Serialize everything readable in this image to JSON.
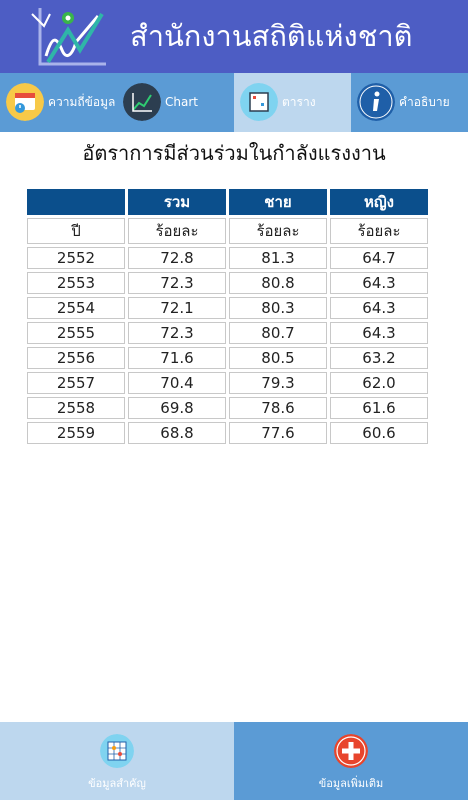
{
  "header": {
    "title": "สำนักงานสถิติแห่งชาติ",
    "brand_color": "#4d5dc4",
    "logo_icon": "nso-logo-icon"
  },
  "tabs": [
    {
      "label": "ความถี่ข้อมูล",
      "icon": "calendar-clock-icon",
      "active": false
    },
    {
      "label": "Chart",
      "icon": "line-chart-icon",
      "active": false
    },
    {
      "label": "ตาราง",
      "icon": "table-icon",
      "active": true
    },
    {
      "label": "คำอธิบาย",
      "icon": "info-icon",
      "active": false
    }
  ],
  "table": {
    "title": "อัตราการมีส่วนร่วมในกำลังแรงงาน",
    "headers": [
      "",
      "รวม",
      "ชาย",
      "หญิง"
    ],
    "units": [
      "ปี",
      "ร้อยละ",
      "ร้อยละ",
      "ร้อยละ"
    ],
    "rows": [
      [
        "2552",
        "72.8",
        "81.3",
        "64.7"
      ],
      [
        "2553",
        "72.3",
        "80.8",
        "64.3"
      ],
      [
        "2554",
        "72.1",
        "80.3",
        "64.3"
      ],
      [
        "2555",
        "72.3",
        "80.7",
        "64.3"
      ],
      [
        "2556",
        "71.6",
        "80.5",
        "63.2"
      ],
      [
        "2557",
        "70.4",
        "79.3",
        "62.0"
      ],
      [
        "2558",
        "69.8",
        "78.6",
        "61.6"
      ],
      [
        "2559",
        "68.8",
        "77.6",
        "60.6"
      ]
    ]
  },
  "bottom": [
    {
      "label": "ข้อมูลสำคัญ",
      "icon": "grid-network-icon",
      "bg": "#bdd7ee"
    },
    {
      "label": "ข้อมูลเพิ่มเติม",
      "icon": "plus-circle-icon",
      "bg": "#5b9bd5"
    }
  ]
}
